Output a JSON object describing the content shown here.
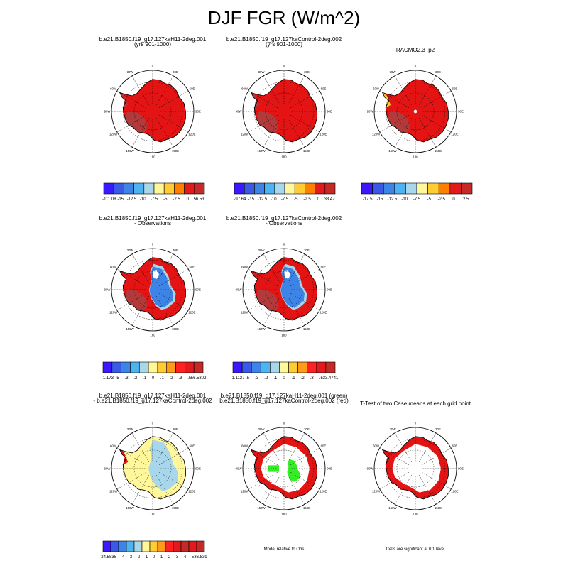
{
  "title": "DJF FGR (W/m^2)",
  "colors": {
    "palette11": [
      "#3a19ff",
      "#3a5ae6",
      "#3d84e6",
      "#4eb4f0",
      "#a8d7ec",
      "#fff79a",
      "#ffcc33",
      "#ff9a1a",
      "#ff2222",
      "#e31a1c",
      "#c42b28"
    ],
    "palette10": [
      "#3a19ff",
      "#3a5ae6",
      "#3d84e6",
      "#4eb4f0",
      "#a8d7ec",
      "#fff79a",
      "#ffcc33",
      "#ff7f00",
      "#e31a1c",
      "#c42b28"
    ],
    "land": "#e51414",
    "land_dark": "#b23a3a",
    "blue_core": "#3d84e6",
    "diff_light": "#a8d7ec",
    "diff_yellow": "#fff79a",
    "sig_green": "#33ee22"
  },
  "grid": {
    "lon_labels": [
      "0",
      "30E",
      "60E",
      "90E",
      "120E",
      "150E",
      "180",
      "150W",
      "120W",
      "90W",
      "60W",
      "30W"
    ]
  },
  "chart_data": [
    {
      "type": "heatmap",
      "projection": "south-polar-stereographic",
      "title": "b.e21.B1850.f19_g17.127kaH11-2deg.001",
      "subtitle": "(yrs 901-1000)",
      "field": "full",
      "colorbar_labels": [
        "-111.08",
        "-15",
        "-12.5",
        "-10",
        "-7.5",
        "-5",
        "-2.5",
        "0",
        "56.53"
      ],
      "colorbar_min": -111.08,
      "colorbar_max": 56.53,
      "ncolors": 10
    },
    {
      "type": "heatmap",
      "projection": "south-polar-stereographic",
      "title": "b.e21.B1850.f19_g17.127kaControl-2deg.002",
      "subtitle": "(yrs 901-1000)",
      "field": "full",
      "colorbar_labels": [
        "-97.64",
        "-15",
        "-12.5",
        "-10",
        "-7.5",
        "-5",
        "-2.5",
        "0",
        "33.47"
      ],
      "colorbar_min": -97.64,
      "colorbar_max": 33.47,
      "ncolors": 10
    },
    {
      "type": "heatmap",
      "projection": "south-polar-stereographic",
      "title": "RACMO2.3_p2",
      "subtitle": "",
      "field": "obs",
      "colorbar_labels": [
        "-17.5",
        "-15",
        "-12.5",
        "-10",
        "-7.5",
        "-5",
        "-2.5",
        "0",
        "2.5"
      ],
      "ncolors": 10
    },
    {
      "type": "heatmap",
      "projection": "south-polar-stereographic",
      "title": "b.e21.B1850.f19_g17.127kaH11-2deg.001",
      "subtitle": "- Observations",
      "field": "bias",
      "colorbar_labels": [
        "-1.173",
        "-.5",
        "-.3",
        "-.2",
        "-.1",
        "0",
        ".1",
        ".2",
        ".3",
        ".5",
        "56.5302"
      ],
      "colorbar_min": -1.173,
      "colorbar_max": 56.5302,
      "ncolors": 11
    },
    {
      "type": "heatmap",
      "projection": "south-polar-stereographic",
      "title": "b.e21.B1850.f19_g17.127kaControl-2deg.002",
      "subtitle": "- Observations",
      "field": "bias",
      "colorbar_labels": [
        "-1.1127",
        "-.5",
        "-.3",
        "-.2",
        "-.1",
        "0",
        ".1",
        ".2",
        ".3",
        ".5",
        "33.4741"
      ],
      "colorbar_min": -1.1127,
      "colorbar_max": 33.4741,
      "ncolors": 11
    },
    {
      "type": "heatmap",
      "projection": "south-polar-stereographic",
      "title": "b.e21.B1850.f19_g17.127kaH11-2deg.001",
      "subtitle": "- b.e21.B1850.f19_g17.127kaControl-2deg.002",
      "field": "diff",
      "colorbar_labels": [
        "-24.583",
        "-5",
        "-4",
        "-3",
        "-2",
        "-1",
        "0",
        "1",
        "2",
        "3",
        "4",
        "5",
        "36.839"
      ],
      "colorbar_min": -24.583,
      "colorbar_max": 36.839,
      "ncolors": 13
    },
    {
      "type": "heatmap",
      "projection": "south-polar-stereographic",
      "title": "b.e21.B1850.f19_g17.127kaH11-2deg.001 (green)",
      "subtitle": "b.e21.B1850.f19_g17.127kaControl-2deg.002 (red)",
      "field": "skill",
      "footnote": "Model relative to Obs"
    },
    {
      "type": "heatmap",
      "projection": "south-polar-stereographic",
      "title": "T-Test of two Case means at each grid point",
      "subtitle": "",
      "field": "ttest",
      "footnote": "Cells are significant at 0.1 level"
    }
  ]
}
